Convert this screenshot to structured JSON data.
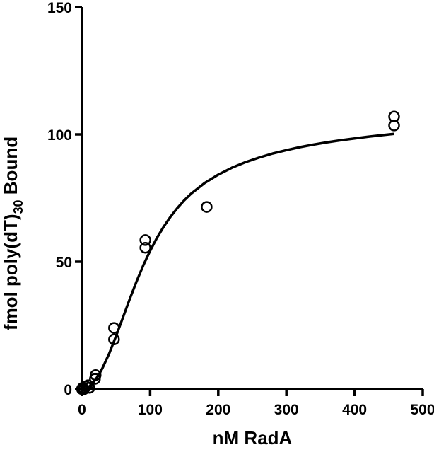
{
  "chart_data": {
    "type": "scatter",
    "xlabel": "nM RadA",
    "ylabel": {
      "prefix": "fmol poly(dT)",
      "subscript": "30",
      "suffix": " Bound"
    },
    "xlim": [
      0,
      500
    ],
    "ylim": [
      0,
      150
    ],
    "x_ticks": [
      0,
      100,
      200,
      300,
      400,
      500
    ],
    "y_ticks": [
      0,
      50,
      100,
      150
    ],
    "grid": false,
    "series": [
      {
        "kind": "points",
        "marker": "open-circle",
        "points": [
          {
            "x": 0,
            "y": 0
          },
          {
            "x": 1,
            "y": 0.5
          },
          {
            "x": 3,
            "y": 0
          },
          {
            "x": 6,
            "y": 1
          },
          {
            "x": 9,
            "y": 1.5
          },
          {
            "x": 11,
            "y": 0.5
          },
          {
            "x": 19,
            "y": 4
          },
          {
            "x": 20,
            "y": 5.5
          },
          {
            "x": 47,
            "y": 24
          },
          {
            "x": 47,
            "y": 19.5
          },
          {
            "x": 93,
            "y": 58.5
          },
          {
            "x": 93,
            "y": 55.5
          },
          {
            "x": 183,
            "y": 71.5
          },
          {
            "x": 458,
            "y": 107
          },
          {
            "x": 458,
            "y": 103.5
          }
        ]
      },
      {
        "kind": "fit",
        "x": [
          0,
          5,
          10,
          15,
          20,
          25,
          30,
          40,
          50,
          60,
          70,
          80,
          90,
          100,
          110,
          120,
          130,
          140,
          150,
          160,
          180,
          200,
          220,
          240,
          260,
          280,
          300,
          320,
          340,
          360,
          380,
          400,
          420,
          440,
          458
        ],
        "y": [
          0,
          0.2,
          0.9,
          2.1,
          3.8,
          5.8,
          8.2,
          14,
          20.8,
          28,
          35.3,
          42.2,
          48.6,
          54.3,
          59.4,
          63.8,
          67.7,
          71.1,
          74.1,
          76.7,
          80.9,
          84.2,
          86.9,
          89.1,
          90.9,
          92.5,
          93.8,
          95,
          96,
          96.9,
          97.7,
          98.4,
          99.1,
          99.7,
          100.2
        ]
      }
    ]
  }
}
